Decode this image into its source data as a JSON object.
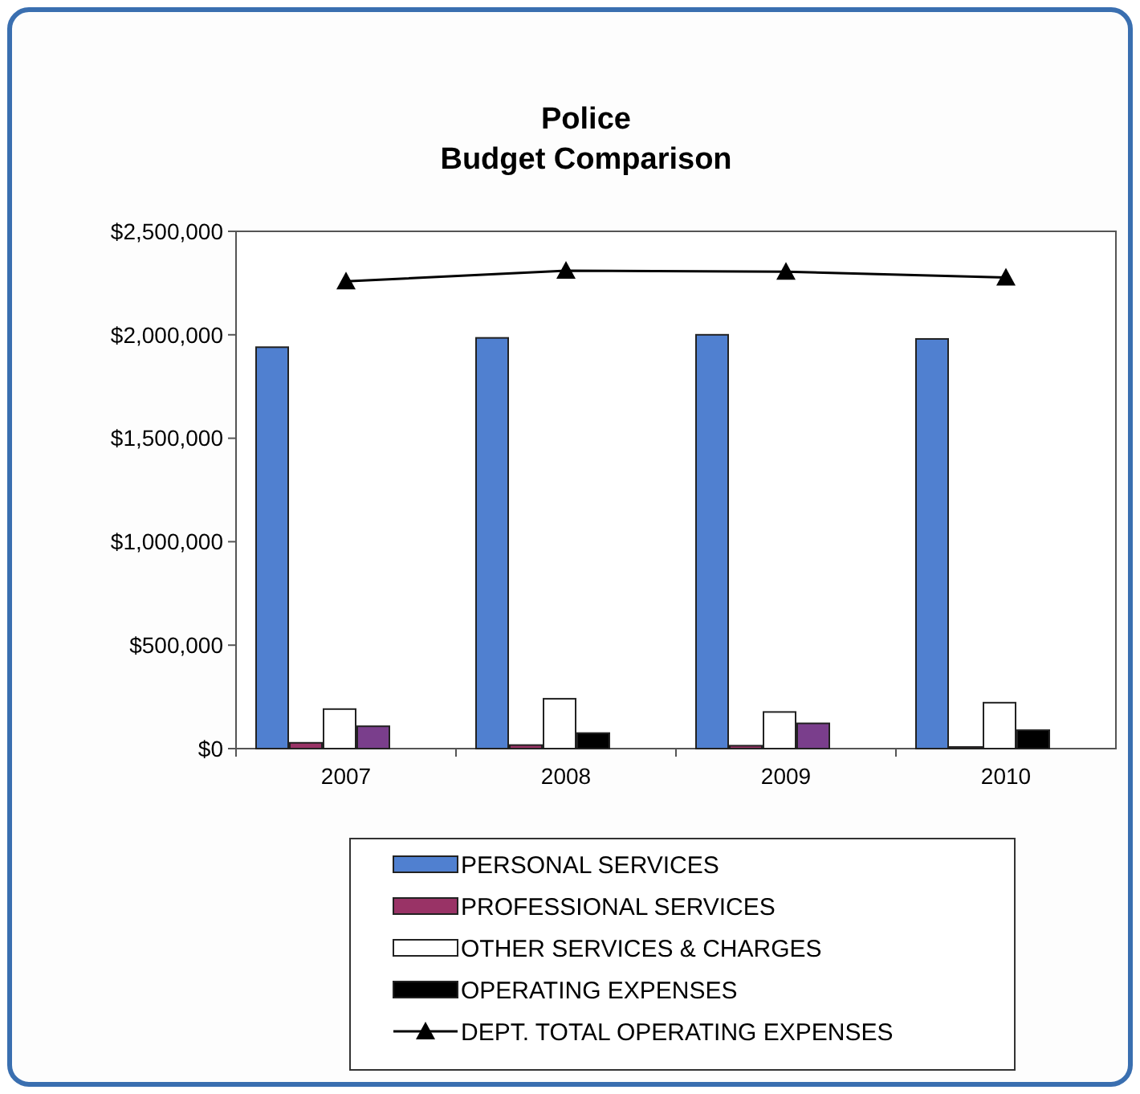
{
  "chart_data": {
    "type": "bar",
    "title": "Police\nBudget Comparison",
    "categories": [
      "2007",
      "2008",
      "2009",
      "2010"
    ],
    "series": [
      {
        "name": "PERSONAL SERVICES",
        "color": "#5080d0",
        "values": [
          1940000,
          1985000,
          2000000,
          1980000
        ]
      },
      {
        "name": "PROFESSIONAL SERVICES",
        "color": "#993366",
        "values": [
          28000,
          17000,
          14000,
          8000
        ]
      },
      {
        "name": "OTHER SERVICES & CHARGES",
        "color": "#ffffff",
        "values": [
          191000,
          241000,
          177000,
          222000
        ]
      },
      {
        "name": "OPERATING EXPENSES",
        "color": "#000000",
        "colors": [
          "#7a3e8c",
          "#000000",
          "#7a3e8c",
          "#000000"
        ],
        "values": [
          108000,
          75000,
          122000,
          89000
        ]
      },
      {
        "name": "DEPT. TOTAL OPERATING EXPENSES",
        "type": "line",
        "color": "#000000",
        "marker": "triangle",
        "values": [
          2258000,
          2310000,
          2305000,
          2277000
        ]
      }
    ],
    "ylim": [
      0,
      2500000
    ],
    "yticks": [
      {
        "value": 0,
        "label": "$0"
      },
      {
        "value": 500000,
        "label": "$500,000"
      },
      {
        "value": 1000000,
        "label": "$1,000,000"
      },
      {
        "value": 1500000,
        "label": "$1,500,000"
      },
      {
        "value": 2000000,
        "label": "$2,000,000"
      },
      {
        "value": 2500000,
        "label": "$2,500,000"
      }
    ],
    "legend": "bottom"
  }
}
